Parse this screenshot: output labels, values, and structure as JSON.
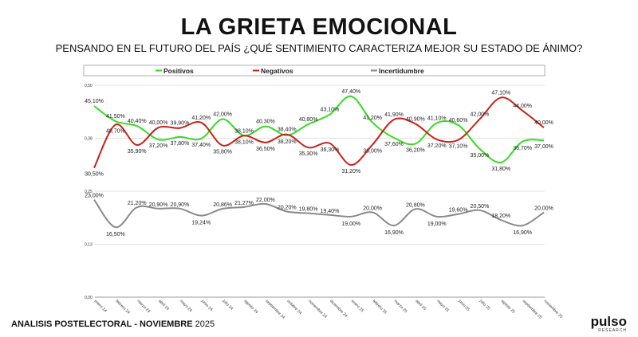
{
  "header": {
    "title": "LA GRIETA EMOCIONAL",
    "subtitle": "PENSANDO EN EL FUTURO DEL PAÍS ¿QUÉ SENTIMIENTO CARACTERIZA MEJOR SU ESTADO DE ÁNIMO?"
  },
  "footer": {
    "left_bold": "ANALISIS POSTELECTORAL - NOVIEMBRE",
    "left_year": "2025",
    "logo_text": "pulso",
    "logo_sub": "RESEARCH"
  },
  "chart_data": {
    "type": "line",
    "title": "LA GRIETA EMOCIONAL",
    "xlabel": "",
    "ylabel": "",
    "ylim": [
      0,
      0.5
    ],
    "yticks": [
      "0,00",
      "0,13",
      "0,25",
      "0,38",
      "0,50"
    ],
    "ytick_values": [
      0,
      0.125,
      0.25,
      0.375,
      0.5
    ],
    "legend_position": "top",
    "categories": [
      "enero 24",
      "febrero 24",
      "marzo 24",
      "abril 24",
      "mayo 24",
      "junio 24",
      "julio 24",
      "agosto 24",
      "septiembre 24",
      "octubre 24",
      "noviembre 24",
      "diciembre 24",
      "enero 25",
      "febrero 25",
      "marzo 25",
      "abril 25",
      "mayo 25",
      "junio 25",
      "julio 25",
      "agosto 25",
      "septiembre 25",
      "noviembre 25"
    ],
    "series": [
      {
        "name": "Positivos",
        "color": "#33dd22",
        "values": [
          45.1,
          41.5,
          40.4,
          37.2,
          37.8,
          37.4,
          42.0,
          38.1,
          40.3,
          38.2,
          40.8,
          43.1,
          47.4,
          41.2,
          37.6,
          36.2,
          41.1,
          40.6,
          35.0,
          31.8,
          36.7,
          37.0
        ]
      },
      {
        "name": "Negativos",
        "color": "#cc1f1a",
        "values": [
          30.5,
          40.7,
          35.9,
          40.0,
          39.9,
          41.2,
          35.8,
          38.1,
          36.5,
          38.4,
          35.3,
          36.3,
          31.2,
          36.0,
          41.9,
          40.9,
          37.2,
          37.1,
          42.0,
          47.1,
          44.0,
          40.0
        ]
      },
      {
        "name": "Incertidumbre",
        "color": "#8a8a8a",
        "values": [
          23.0,
          16.5,
          21.2,
          20.9,
          20.9,
          19.24,
          20.86,
          21.27,
          22.0,
          20.2,
          19.8,
          19.4,
          19.0,
          20.0,
          16.9,
          20.8,
          19.0,
          19.6,
          20.5,
          18.2,
          16.9,
          20.0
        ]
      }
    ]
  }
}
